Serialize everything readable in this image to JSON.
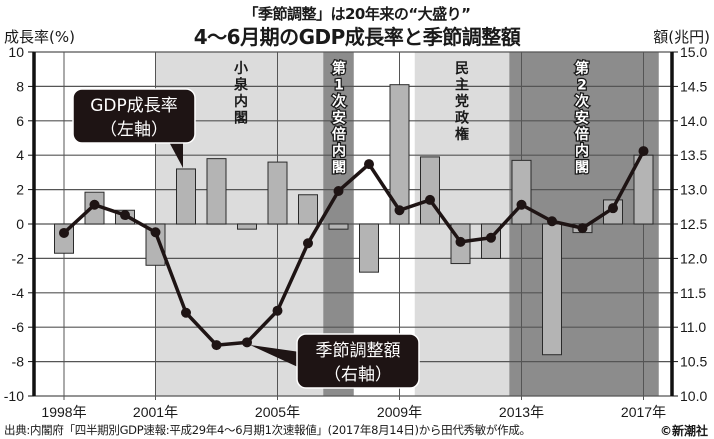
{
  "header": {
    "subtitle": "「季節調整」は20年来の“大盛り”",
    "title": "4〜6月期のGDP成長率と季節調整額",
    "left_axis_title": "成長率(%)",
    "right_axis_title": "額(兆円)"
  },
  "footer": {
    "source": "出典:内閣府「四半期別GDP速報:平成29年4〜6月期1次速報値」(2017年8月14日)から田代秀敏が作成。",
    "copyright": "©新潮社"
  },
  "callouts": {
    "gdp_line1": "GDP成長率",
    "gdp_line2": "（左軸）",
    "sa_line1": "季節調整額",
    "sa_line2": "（右軸）"
  },
  "periods": [
    {
      "label": "小泉内閣",
      "start": 2001.0,
      "end": 2006.5,
      "shade": "#dcdcdc",
      "text_color": "#1a1a1a"
    },
    {
      "label": "第1次安倍内閣",
      "start": 2006.5,
      "end": 2007.5,
      "shade": "#8c8c8c",
      "text_color": "#ffffff"
    },
    {
      "label": "民主党政権",
      "start": 2009.5,
      "end": 2012.6,
      "shade": "#dcdcdc",
      "text_color": "#1a1a1a"
    },
    {
      "label": "第2次安倍内閣",
      "start": 2012.6,
      "end": 2017.5,
      "shade": "#8c8c8c",
      "text_color": "#ffffff"
    }
  ],
  "colors": {
    "bar_fill": "#b4b4b4",
    "bar_stroke": "#2a2a2a",
    "line": "#1e1414",
    "grid": "#555555",
    "callout_bg": "#1e1414"
  },
  "chart_data": {
    "type": "bar+line",
    "title": "4〜6月期のGDP成長率と季節調整額",
    "subtitle": "「季節調整」は20年来の“大盛り”",
    "xlabel": "",
    "categories": [
      1998,
      1999,
      2000,
      2001,
      2002,
      2003,
      2004,
      2005,
      2006,
      2007,
      2008,
      2009,
      2010,
      2011,
      2012,
      2013,
      2014,
      2015,
      2016,
      2017
    ],
    "x_tick_labels": [
      "1998年",
      "2001年",
      "2005年",
      "2009年",
      "2013年",
      "2017年"
    ],
    "series": [
      {
        "name": "GDP成長率（左軸）",
        "type": "bar",
        "axis": "left",
        "values": [
          -1.7,
          1.85,
          0.8,
          -2.4,
          3.2,
          3.8,
          -0.3,
          3.6,
          1.7,
          -0.3,
          -2.8,
          8.1,
          3.9,
          -2.3,
          -2.0,
          3.7,
          -7.6,
          -0.5,
          1.4,
          4.0
        ]
      },
      {
        "name": "季節調整額（右軸）",
        "type": "line",
        "axis": "right",
        "values": [
          12.37,
          12.78,
          12.63,
          12.38,
          11.21,
          10.74,
          10.78,
          11.24,
          12.22,
          12.98,
          13.37,
          12.7,
          12.85,
          12.24,
          12.3,
          12.78,
          12.54,
          12.44,
          12.73,
          13.56
        ]
      }
    ],
    "left_axis": {
      "label": "成長率(%)",
      "range": [
        -10,
        10
      ],
      "ticks": [
        10,
        8,
        6,
        4,
        2,
        0,
        -2,
        -4,
        -6,
        -8,
        -10
      ]
    },
    "right_axis": {
      "label": "額(兆円)",
      "range": [
        10.0,
        15.0
      ],
      "ticks": [
        "15.0",
        "14.5",
        "14.0",
        "13.5",
        "13.0",
        "12.5",
        "12.0",
        "11.5",
        "11.0",
        "10.5",
        "10.0"
      ]
    },
    "grid": true,
    "annotations": [
      "小泉内閣",
      "第1次安倍内閣",
      "民主党政権",
      "第2次安倍内閣"
    ]
  }
}
